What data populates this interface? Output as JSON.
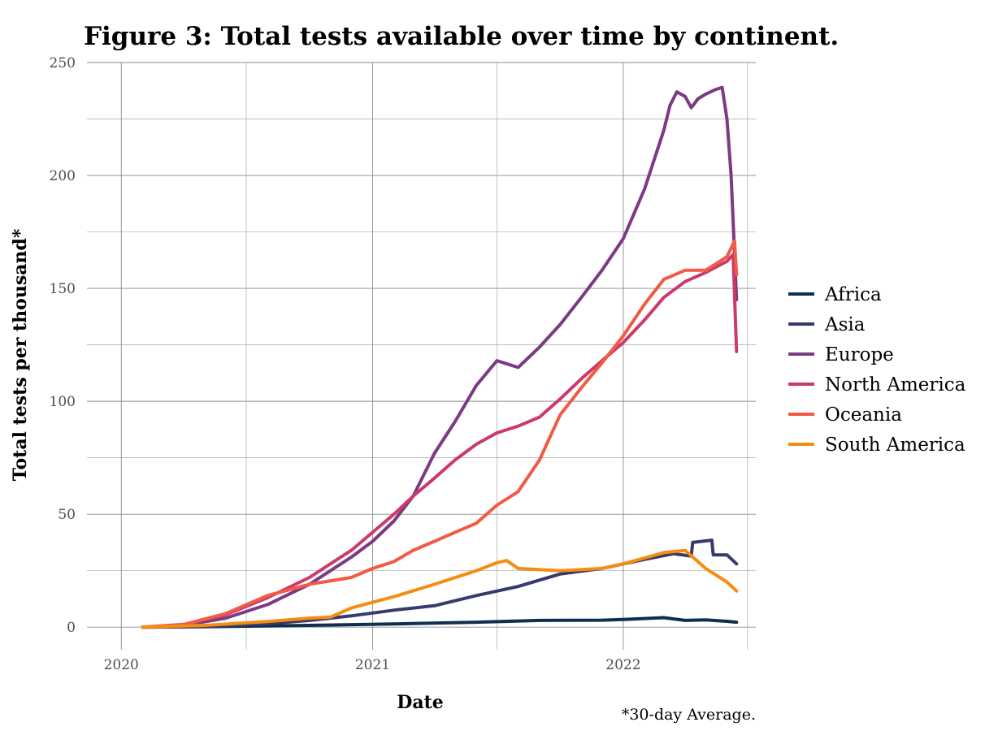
{
  "chart_data": {
    "type": "line",
    "title": "Figure 3: Total tests available over time by continent.",
    "xlabel": "Date",
    "ylabel": "Total tests per thousand*",
    "caption": "*30-day Average.",
    "x_ticks": [
      "2020",
      "2021",
      "2022"
    ],
    "y_ticks": [
      "0",
      "50",
      "100",
      "150",
      "200",
      "250"
    ],
    "xlim": [
      "2019-11-12",
      "2022-07-13"
    ],
    "ylim": [
      -10,
      250
    ],
    "grid": true,
    "legend_position": "right",
    "series": [
      {
        "name": "Africa",
        "color": "#0d3050",
        "x": [
          "2020-02-01",
          "2020-06-01",
          "2020-10-01",
          "2021-02-01",
          "2021-06-01",
          "2021-09-01",
          "2021-12-01",
          "2022-01-01",
          "2022-03-01",
          "2022-04-01",
          "2022-05-01",
          "2022-06-01",
          "2022-06-15"
        ],
        "y": [
          0,
          0.3,
          0.8,
          1.4,
          2.2,
          3.0,
          3.1,
          3.4,
          4.2,
          3.0,
          3.2,
          2.6,
          2.2
        ]
      },
      {
        "name": "Asia",
        "color": "#373a6d",
        "x": [
          "2020-02-01",
          "2020-05-01",
          "2020-08-01",
          "2020-10-01",
          "2020-12-01",
          "2021-02-01",
          "2021-04-01",
          "2021-06-01",
          "2021-08-01",
          "2021-10-01",
          "2021-12-01",
          "2022-02-01",
          "2022-03-15",
          "2022-04-10",
          "2022-04-12",
          "2022-05-10",
          "2022-05-12",
          "2022-06-01",
          "2022-06-15"
        ],
        "y": [
          0,
          0.3,
          1.5,
          3.0,
          5.0,
          7.5,
          9.5,
          14.0,
          18.0,
          23.5,
          26.0,
          30.0,
          32.5,
          31.5,
          37.5,
          38.5,
          32.0,
          32.0,
          28.0
        ]
      },
      {
        "name": "Europe",
        "color": "#7c3a83",
        "x": [
          "2020-02-01",
          "2020-04-01",
          "2020-06-01",
          "2020-08-01",
          "2020-10-01",
          "2020-12-01",
          "2021-01-01",
          "2021-02-01",
          "2021-03-01",
          "2021-04-01",
          "2021-05-01",
          "2021-06-01",
          "2021-07-01",
          "2021-08-01",
          "2021-09-01",
          "2021-10-01",
          "2021-11-01",
          "2021-12-01",
          "2022-01-01",
          "2022-02-01",
          "2022-03-01",
          "2022-03-10",
          "2022-03-20",
          "2022-04-01",
          "2022-04-10",
          "2022-04-20",
          "2022-05-01",
          "2022-05-15",
          "2022-05-25",
          "2022-06-01",
          "2022-06-07",
          "2022-06-15"
        ],
        "y": [
          0,
          0.8,
          4.0,
          10.0,
          19.0,
          31.0,
          38.0,
          47.0,
          58.0,
          77.0,
          91.0,
          107.0,
          118.0,
          115.0,
          124.0,
          134.0,
          146.0,
          158.0,
          172.0,
          194.0,
          220.0,
          231.0,
          237.0,
          235.0,
          230.0,
          234.0,
          236.0,
          238.0,
          239.0,
          225.0,
          200.0,
          145.0
        ]
      },
      {
        "name": "North America",
        "color": "#cc3a6b",
        "x": [
          "2020-02-01",
          "2020-04-01",
          "2020-06-01",
          "2020-08-01",
          "2020-10-01",
          "2020-12-01",
          "2021-01-01",
          "2021-02-01",
          "2021-03-01",
          "2021-04-01",
          "2021-05-01",
          "2021-06-01",
          "2021-07-01",
          "2021-08-01",
          "2021-09-01",
          "2021-10-01",
          "2021-11-01",
          "2021-12-01",
          "2022-01-01",
          "2022-02-01",
          "2022-03-01",
          "2022-04-01",
          "2022-05-01",
          "2022-06-01",
          "2022-06-10",
          "2022-06-15"
        ],
        "y": [
          0,
          1.2,
          5.5,
          13.0,
          22.0,
          34.0,
          42.0,
          50.0,
          58.0,
          66.0,
          74.0,
          81.0,
          86.0,
          89.0,
          93.0,
          101.0,
          110.0,
          118.0,
          126.0,
          136.0,
          146.0,
          153.0,
          157.0,
          162.0,
          165.0,
          122.0
        ]
      },
      {
        "name": "Oceania",
        "color": "#f15a45",
        "x": [
          "2020-02-01",
          "2020-04-01",
          "2020-06-01",
          "2020-08-01",
          "2020-10-01",
          "2020-12-01",
          "2021-01-01",
          "2021-02-01",
          "2021-03-01",
          "2021-04-01",
          "2021-05-01",
          "2021-06-01",
          "2021-07-01",
          "2021-08-01",
          "2021-09-01",
          "2021-10-01",
          "2021-11-01",
          "2021-12-01",
          "2022-01-01",
          "2022-02-01",
          "2022-03-01",
          "2022-04-01",
          "2022-05-01",
          "2022-06-01",
          "2022-06-12",
          "2022-06-15"
        ],
        "y": [
          0,
          1.2,
          6.0,
          14.0,
          19.0,
          22.0,
          26.0,
          29.0,
          34.0,
          38.0,
          42.0,
          46.0,
          54.0,
          60.0,
          74.0,
          94.0,
          106.0,
          117.0,
          129.0,
          143.0,
          154.0,
          158.0,
          158.0,
          164.0,
          171.0,
          156.0
        ]
      },
      {
        "name": "South America",
        "color": "#f58d12",
        "x": [
          "2020-02-01",
          "2020-05-01",
          "2020-08-01",
          "2020-10-01",
          "2020-11-01",
          "2020-12-01",
          "2021-01-01",
          "2021-02-01",
          "2021-04-01",
          "2021-06-01",
          "2021-07-01",
          "2021-07-15",
          "2021-08-01",
          "2021-10-01",
          "2021-12-01",
          "2022-01-01",
          "2022-03-01",
          "2022-04-01",
          "2022-05-01",
          "2022-06-01",
          "2022-06-15"
        ],
        "y": [
          0,
          0.8,
          2.5,
          4.0,
          4.5,
          8.5,
          11.0,
          13.5,
          19.0,
          25.0,
          28.5,
          29.5,
          26.0,
          25.0,
          26.0,
          28.0,
          33.0,
          34.0,
          26.0,
          20.0,
          16.0
        ]
      }
    ]
  }
}
